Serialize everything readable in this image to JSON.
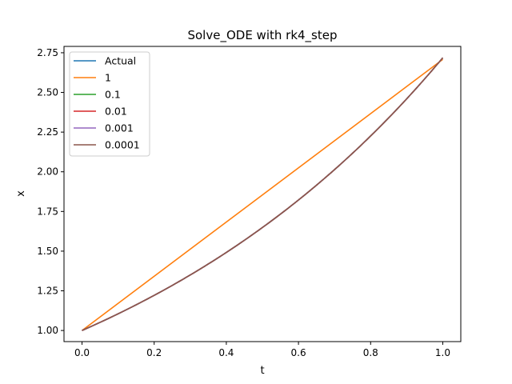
{
  "chart_data": {
    "type": "line",
    "title": "Solve_ODE with rk4_step",
    "xlabel": "t",
    "ylabel": "x",
    "xlim": [
      -0.05,
      1.05
    ],
    "ylim": [
      0.93,
      2.79
    ],
    "xticks": [
      0.0,
      0.2,
      0.4,
      0.6,
      0.8,
      1.0
    ],
    "xtick_labels": [
      "0.0",
      "0.2",
      "0.4",
      "0.6",
      "0.8",
      "1.0"
    ],
    "yticks": [
      1.0,
      1.25,
      1.5,
      1.75,
      2.0,
      2.25,
      2.5,
      2.75
    ],
    "ytick_labels": [
      "1.00",
      "1.25",
      "1.50",
      "1.75",
      "2.00",
      "2.25",
      "2.50",
      "2.75"
    ],
    "grid": false,
    "legend_position": "top-left",
    "series": [
      {
        "name": "Actual",
        "color": "#1f77b4",
        "x": [
          0,
          0.1,
          0.2,
          0.3,
          0.4,
          0.5,
          0.6,
          0.7,
          0.8,
          0.9,
          1.0
        ],
        "y": [
          1.0,
          1.105,
          1.221,
          1.35,
          1.492,
          1.649,
          1.822,
          2.014,
          2.226,
          2.46,
          2.718
        ]
      },
      {
        "name": "1",
        "color": "#ff7f0e",
        "x": [
          0,
          1.0
        ],
        "y": [
          1.0,
          2.708
        ]
      },
      {
        "name": "0.1",
        "color": "#2ca02c",
        "x": [
          0,
          0.1,
          0.2,
          0.3,
          0.4,
          0.5,
          0.6,
          0.7,
          0.8,
          0.9,
          1.0
        ],
        "y": [
          1.0,
          1.105,
          1.221,
          1.35,
          1.492,
          1.649,
          1.822,
          2.014,
          2.226,
          2.46,
          2.718
        ]
      },
      {
        "name": "0.01",
        "color": "#d62728",
        "x": [
          0,
          0.1,
          0.2,
          0.3,
          0.4,
          0.5,
          0.6,
          0.7,
          0.8,
          0.9,
          1.0
        ],
        "y": [
          1.0,
          1.105,
          1.221,
          1.35,
          1.492,
          1.649,
          1.822,
          2.014,
          2.226,
          2.46,
          2.718
        ]
      },
      {
        "name": "0.001",
        "color": "#9467bd",
        "x": [
          0,
          0.1,
          0.2,
          0.3,
          0.4,
          0.5,
          0.6,
          0.7,
          0.8,
          0.9,
          1.0
        ],
        "y": [
          1.0,
          1.105,
          1.221,
          1.35,
          1.492,
          1.649,
          1.822,
          2.014,
          2.226,
          2.46,
          2.718
        ]
      },
      {
        "name": "0.0001",
        "color": "#8c564b",
        "x": [
          0,
          0.1,
          0.2,
          0.3,
          0.4,
          0.5,
          0.6,
          0.7,
          0.8,
          0.9,
          1.0
        ],
        "y": [
          1.0,
          1.105,
          1.221,
          1.35,
          1.492,
          1.649,
          1.822,
          2.014,
          2.226,
          2.46,
          2.718
        ]
      }
    ]
  }
}
